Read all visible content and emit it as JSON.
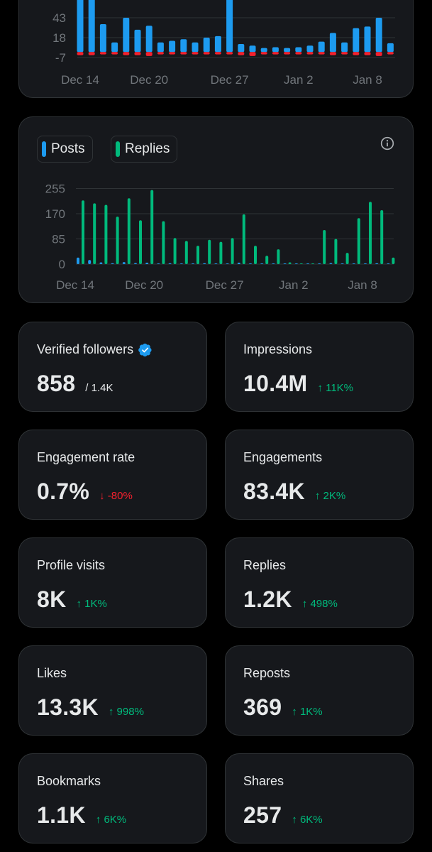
{
  "colors": {
    "posts": "#1d9bf0",
    "replies": "#00ba7c",
    "negative": "#f4212e",
    "positive": "#00ba7c",
    "card_bg": "#16181c",
    "border": "#2f3336"
  },
  "chart_data": [
    {
      "type": "bar",
      "y_ticks": [
        43,
        18,
        -7
      ],
      "x_ticks": [
        "Dec 14",
        "Dec 20",
        "Dec 27",
        "Jan 2",
        "Jan 8"
      ],
      "x_tick_day_index": [
        0,
        6,
        13,
        19,
        25
      ],
      "ylim": [
        -12,
        72
      ],
      "grid": true,
      "series": [
        {
          "color": "#1d9bf0",
          "values": [
            80,
            80,
            35,
            12,
            43,
            28,
            33,
            12,
            14,
            16,
            12,
            18,
            20,
            80,
            10,
            8,
            5,
            6,
            5,
            6,
            8,
            13,
            24,
            12,
            30,
            32,
            43,
            11
          ]
        },
        {
          "color": "#f4212e",
          "values": [
            -4,
            -4,
            -3,
            -3,
            -4,
            -4,
            -5,
            -3,
            -3,
            -3,
            -3,
            -3,
            -3,
            -3,
            -4,
            -5,
            -3,
            -3,
            -3,
            -3,
            -3,
            -3,
            -4,
            -3,
            -4,
            -4,
            -5,
            -3
          ]
        }
      ]
    },
    {
      "type": "bar",
      "y_ticks": [
        255,
        170,
        85,
        0
      ],
      "x_ticks": [
        "Dec 14",
        "Dec 20",
        "Dec 27",
        "Jan 2",
        "Jan 8"
      ],
      "x_tick_day_index": [
        0,
        6,
        13,
        19,
        25
      ],
      "ylim": [
        0,
        255
      ],
      "grid": true,
      "legend": [
        "Posts",
        "Replies"
      ],
      "series": [
        {
          "name": "Posts",
          "color": "#1d9bf0",
          "values": [
            22,
            14,
            6,
            3,
            7,
            4,
            5,
            2,
            3,
            2,
            1,
            3,
            2,
            1,
            5,
            1,
            1,
            1,
            0,
            0,
            1,
            0,
            4,
            1,
            0,
            2,
            3,
            1
          ]
        },
        {
          "name": "Replies",
          "color": "#00ba7c",
          "values": [
            215,
            205,
            200,
            160,
            222,
            148,
            250,
            145,
            88,
            78,
            62,
            82,
            75,
            88,
            168,
            62,
            28,
            50,
            6,
            0,
            0,
            115,
            85,
            38,
            155,
            210,
            182,
            22
          ]
        }
      ]
    }
  ],
  "chart2": {
    "legend_posts": "Posts",
    "legend_replies": "Replies",
    "info_icon": "info-circle-icon"
  },
  "stats": [
    {
      "title": "Verified followers",
      "value": "858",
      "sub": "/ 1.4K",
      "verified": true,
      "icon": "verified-badge-icon"
    },
    {
      "title": "Impressions",
      "value": "10.4M",
      "change": "↑ 11K%",
      "direction": "up"
    },
    {
      "title": "Engagement rate",
      "value": "0.7%",
      "change": "↓ -80%",
      "direction": "down"
    },
    {
      "title": "Engagements",
      "value": "83.4K",
      "change": "↑ 2K%",
      "direction": "up"
    },
    {
      "title": "Profile visits",
      "value": "8K",
      "change": "↑ 1K%",
      "direction": "up"
    },
    {
      "title": "Replies",
      "value": "1.2K",
      "change": "↑ 498%",
      "direction": "up"
    },
    {
      "title": "Likes",
      "value": "13.3K",
      "change": "↑ 998%",
      "direction": "up"
    },
    {
      "title": "Reposts",
      "value": "369",
      "change": "↑ 1K%",
      "direction": "up"
    },
    {
      "title": "Bookmarks",
      "value": "1.1K",
      "change": "↑ 6K%",
      "direction": "up"
    },
    {
      "title": "Shares",
      "value": "257",
      "change": "↑ 6K%",
      "direction": "up"
    }
  ]
}
